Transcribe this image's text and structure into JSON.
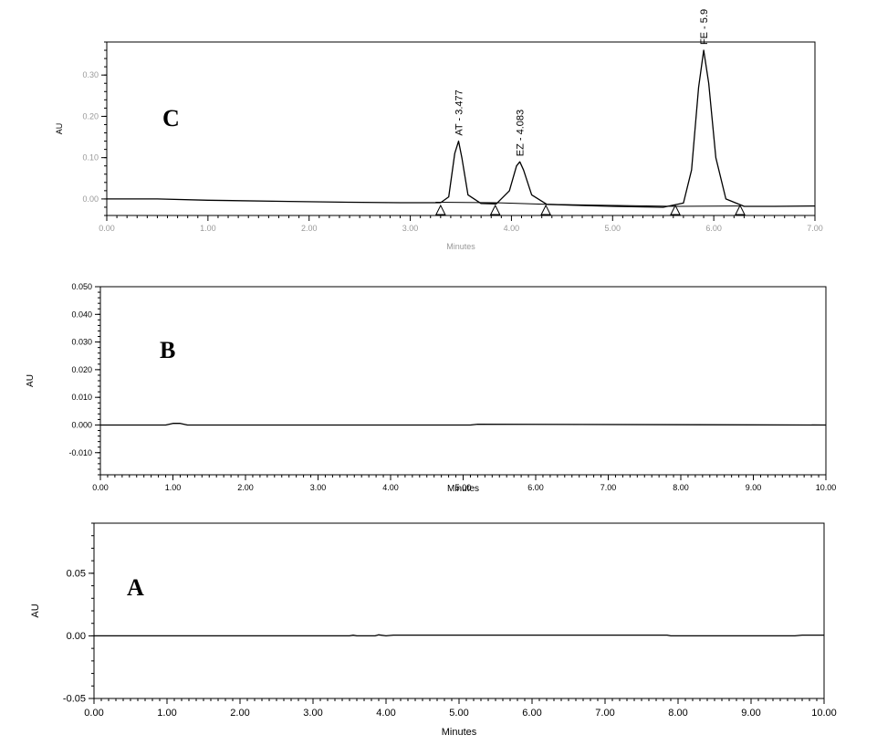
{
  "chart_data": [
    {
      "type": "line",
      "panel": "C",
      "title": "",
      "xlabel": "Minutes",
      "ylabel": "AU",
      "xlim": [
        0,
        7
      ],
      "ylim": [
        -0.04,
        0.38
      ],
      "x_ticks": [
        "0.00",
        "1.00",
        "2.00",
        "3.00",
        "4.00",
        "5.00",
        "6.00",
        "7.00"
      ],
      "y_ticks": [
        "0.30",
        "0.20",
        "0.10",
        "0.00"
      ],
      "y_tick_values": [
        0.3,
        0.2,
        0.1,
        0.0
      ],
      "grid": false,
      "tick_color": "#999999",
      "series": [
        {
          "x": [
            0,
            0.5,
            1.0,
            1.8,
            2.4,
            2.9,
            3.3,
            3.38,
            3.44,
            3.477,
            3.51,
            3.57,
            3.7,
            3.85,
            3.98,
            4.05,
            4.083,
            4.12,
            4.2,
            4.35,
            4.6,
            5.0,
            5.5,
            5.7,
            5.78,
            5.85,
            5.9,
            5.95,
            6.02,
            6.12,
            6.3,
            6.6,
            7.0
          ],
          "y": [
            0.0,
            0.0,
            -0.003,
            -0.006,
            -0.008,
            -0.009,
            -0.009,
            0.005,
            0.11,
            0.14,
            0.1,
            0.01,
            -0.011,
            -0.012,
            0.02,
            0.08,
            0.09,
            0.07,
            0.01,
            -0.013,
            -0.015,
            -0.018,
            -0.02,
            -0.01,
            0.07,
            0.27,
            0.36,
            0.28,
            0.1,
            0.0,
            -0.018,
            -0.018,
            -0.017
          ]
        }
      ],
      "baseline": {
        "x": [
          3.25,
          3.84,
          4.34,
          5.62,
          6.26
        ],
        "y": [
          -0.008,
          -0.009,
          -0.013,
          -0.018,
          -0.017
        ]
      },
      "peaks": [
        {
          "label": "AT - 3.477",
          "x": 3.477,
          "y": 0.14
        },
        {
          "label": "EZ - 4.083",
          "x": 4.083,
          "y": 0.09
        },
        {
          "label": "FE - 5.9",
          "x": 5.9,
          "y": 0.36
        }
      ],
      "markers_x": [
        3.3,
        3.84,
        4.34,
        5.62,
        6.26
      ]
    },
    {
      "type": "line",
      "panel": "B",
      "title": "",
      "xlabel": "Minutes",
      "ylabel": "AU",
      "xlim": [
        0,
        10
      ],
      "ylim": [
        -0.018,
        0.05
      ],
      "x_ticks": [
        "0.00",
        "1.00",
        "2.00",
        "3.00",
        "4.00",
        "5.00",
        "6.00",
        "7.00",
        "8.00",
        "9.00",
        "10.00"
      ],
      "y_ticks": [
        "0.050",
        "0.040",
        "0.030",
        "0.020",
        "0.010",
        "0.000",
        "-0.010"
      ],
      "y_tick_values": [
        0.05,
        0.04,
        0.03,
        0.02,
        0.01,
        0.0,
        -0.01
      ],
      "grid": false,
      "tick_color": "#000000",
      "series": [
        {
          "x": [
            0,
            0.9,
            1.0,
            1.1,
            1.2,
            5.1,
            5.2,
            10.0
          ],
          "y": [
            0.0,
            0.0,
            0.0006,
            0.0006,
            0.0,
            0.0,
            0.0003,
            0.0
          ]
        }
      ]
    },
    {
      "type": "line",
      "panel": "A",
      "title": "",
      "xlabel": "Minutes",
      "ylabel": "AU",
      "xlim": [
        0,
        10
      ],
      "ylim": [
        -0.05,
        0.09
      ],
      "x_ticks": [
        "0.00",
        "1.00",
        "2.00",
        "3.00",
        "4.00",
        "5.00",
        "6.00",
        "7.00",
        "8.00",
        "9.00",
        "10.00"
      ],
      "y_ticks": [
        "0.05",
        "0.00",
        "-0.05"
      ],
      "y_tick_values": [
        0.05,
        0.0,
        -0.05
      ],
      "grid": false,
      "tick_color": "#000000",
      "series": [
        {
          "x": [
            0,
            3.5,
            3.55,
            3.6,
            3.85,
            3.9,
            4.0,
            4.1,
            7.85,
            7.9,
            9.6,
            9.7,
            10.0
          ],
          "y": [
            0.0,
            0.0,
            0.0005,
            0.0,
            0.0,
            0.0008,
            0.0,
            0.0006,
            0.0006,
            0.0,
            0.0,
            0.0006,
            0.0006
          ]
        }
      ]
    }
  ]
}
